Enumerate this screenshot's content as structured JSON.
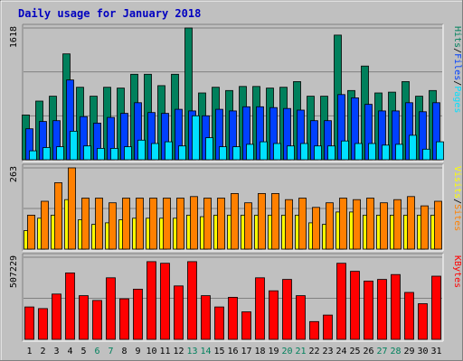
{
  "chart_data": {
    "title": "Daily usage for January 2018",
    "type": "bar",
    "days": [
      "1",
      "2",
      "3",
      "4",
      "5",
      "6",
      "7",
      "8",
      "9",
      "10",
      "11",
      "12",
      "13",
      "14",
      "15",
      "16",
      "17",
      "18",
      "19",
      "20",
      "21",
      "22",
      "23",
      "24",
      "25",
      "26",
      "27",
      "28",
      "29",
      "30",
      "31"
    ],
    "weekend_days": [
      6,
      7,
      13,
      14,
      20,
      21,
      27,
      28
    ],
    "colors": {
      "hits": "#00805c",
      "files": "#0040ff",
      "pages": "#00e0ff",
      "visits": "#ffff00",
      "sites": "#ff8000",
      "kbytes": "#ff0000",
      "weekday_label": "#000000",
      "weekend_label": "#00805c"
    },
    "panels": [
      {
        "name": "hits-files-pages",
        "ymax": 1618,
        "ymax_label": "1618",
        "legend": [
          {
            "text": "Hits",
            "color": "#00805c"
          },
          {
            "text": "/",
            "color": "#000000"
          },
          {
            "text": "Files",
            "color": "#0040ff"
          },
          {
            "text": "/",
            "color": "#000000"
          },
          {
            "text": "Pages",
            "color": "#00e0ff"
          }
        ],
        "series": [
          {
            "name": "Hits",
            "color": "#00805c",
            "values": [
              550,
              720,
              780,
              1300,
              890,
              780,
              890,
              880,
              1050,
              1050,
              910,
              1050,
              1618,
              820,
              890,
              850,
              900,
              900,
              880,
              890,
              960,
              780,
              780,
              1530,
              850,
              1150,
              820,
              830,
              960,
              780,
              850
            ]
          },
          {
            "name": "Files",
            "color": "#0040ff",
            "values": [
              380,
              470,
              480,
              980,
              530,
              450,
              520,
              570,
              700,
              580,
              570,
              620,
              600,
              540,
              620,
              600,
              650,
              650,
              640,
              630,
              610,
              480,
              480,
              800,
              760,
              680,
              600,
              600,
              700,
              590,
              700
            ]
          },
          {
            "name": "Pages",
            "color": "#00e0ff",
            "values": [
              110,
              150,
              160,
              350,
              170,
              140,
              140,
              160,
              240,
              200,
              220,
              170,
              540,
              270,
              160,
              160,
              190,
              220,
              200,
              170,
              200,
              170,
              170,
              230,
              200,
              200,
              180,
              190,
              300,
              130,
              220
            ]
          }
        ]
      },
      {
        "name": "visits-sites",
        "ymax": 263,
        "ymax_label": "263",
        "legend": [
          {
            "text": "Visits",
            "color": "#ffff00"
          },
          {
            "text": "/",
            "color": "#000000"
          },
          {
            "text": "Sites",
            "color": "#ff8000"
          }
        ],
        "series": [
          {
            "name": "Visits",
            "color": "#ffff00",
            "values": [
              60,
              100,
              110,
              160,
              95,
              80,
              85,
              95,
              100,
              100,
              100,
              100,
              110,
              105,
              110,
              110,
              110,
              110,
              110,
              110,
              110,
              85,
              80,
              120,
              120,
              110,
              110,
              110,
              110,
              110,
              110
            ]
          },
          {
            "name": "Sites",
            "color": "#ff8000",
            "values": [
              110,
              155,
              215,
              263,
              165,
              165,
              150,
              165,
              165,
              165,
              165,
              165,
              170,
              165,
              165,
              180,
              150,
              180,
              180,
              160,
              165,
              135,
              150,
              165,
              160,
              165,
              150,
              160,
              170,
              140,
              155
            ]
          }
        ]
      },
      {
        "name": "kbytes",
        "ymax": 507229,
        "ymax_label": "507229",
        "legend": [
          {
            "text": "KBytes",
            "color": "#ff0000"
          }
        ],
        "series": [
          {
            "name": "KBytes",
            "color": "#ff0000",
            "values": [
              200000,
              190000,
              280000,
              410000,
              270000,
              240000,
              380000,
              250000,
              310000,
              480000,
              470000,
              330000,
              480000,
              270000,
              200000,
              260000,
              170000,
              380000,
              300000,
              370000,
              270000,
              110000,
              150000,
              470000,
              420000,
              360000,
              370000,
              400000,
              290000,
              220000,
              390000
            ]
          }
        ]
      }
    ]
  }
}
